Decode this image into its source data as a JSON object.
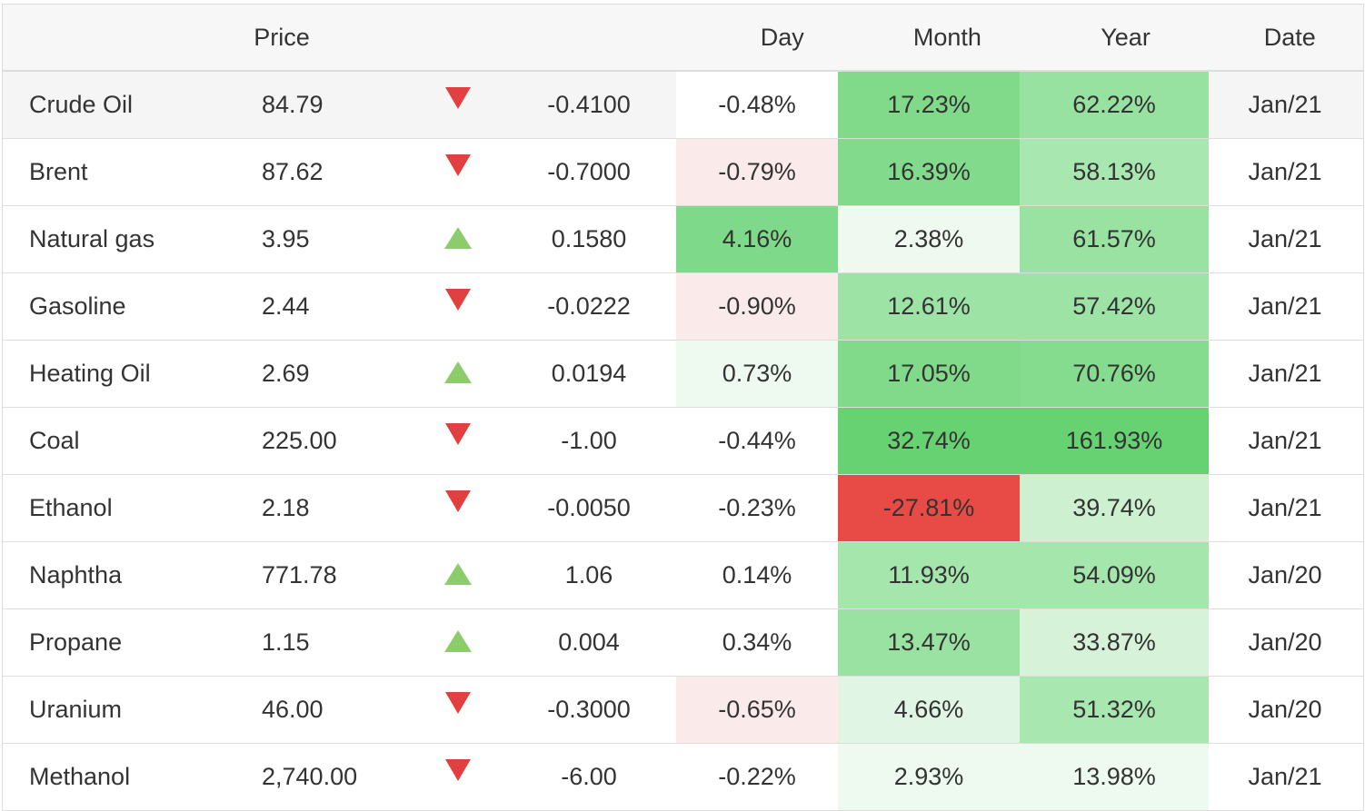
{
  "header": {
    "price": "Price",
    "day": "Day",
    "month": "Month",
    "year": "Year",
    "date": "Date"
  },
  "colors": {
    "down_arrow": "#e04040",
    "up_arrow": "#8ccc6a",
    "negative_strong": "#e84a45",
    "negative_light": "#fbeaea"
  },
  "rows": [
    {
      "name": "Crude Oil",
      "price": "84.79",
      "direction": "down",
      "change": "-0.4100",
      "day": "-0.48%",
      "month": "17.23%",
      "year": "62.22%",
      "date": "Jan/21",
      "day_color": "#ffffff",
      "month_color": "#80da8a",
      "year_color": "#97e2a0"
    },
    {
      "name": "Brent",
      "price": "87.62",
      "direction": "down",
      "change": "-0.7000",
      "day": "-0.79%",
      "month": "16.39%",
      "year": "58.13%",
      "date": "Jan/21",
      "day_color": "#fbeaea",
      "month_color": "#82db8c",
      "year_color": "#a8e8b0"
    },
    {
      "name": "Natural gas",
      "price": "3.95",
      "direction": "up",
      "change": "0.1580",
      "day": "4.16%",
      "month": "2.38%",
      "year": "61.57%",
      "date": "Jan/21",
      "day_color": "#7fd98a",
      "month_color": "#eff9f0",
      "year_color": "#99e2a2"
    },
    {
      "name": "Gasoline",
      "price": "2.44",
      "direction": "down",
      "change": "-0.0222",
      "day": "-0.90%",
      "month": "12.61%",
      "year": "57.42%",
      "date": "Jan/21",
      "day_color": "#fbeaea",
      "month_color": "#9ce3a5",
      "year_color": "#9ce3a5"
    },
    {
      "name": "Heating Oil",
      "price": "2.69",
      "direction": "up",
      "change": "0.0194",
      "day": "0.73%",
      "month": "17.05%",
      "year": "70.76%",
      "date": "Jan/21",
      "day_color": "#eef9f0",
      "month_color": "#80da8a",
      "year_color": "#85dc8f"
    },
    {
      "name": "Coal",
      "price": "225.00",
      "direction": "down",
      "change": "-1.00",
      "day": "-0.44%",
      "month": "32.74%",
      "year": "161.93%",
      "date": "Jan/21",
      "day_color": "#ffffff",
      "month_color": "#66d271",
      "year_color": "#66d271"
    },
    {
      "name": "Ethanol",
      "price": "2.18",
      "direction": "down",
      "change": "-0.0050",
      "day": "-0.23%",
      "month": "-27.81%",
      "year": "39.74%",
      "date": "Jan/21",
      "day_color": "#ffffff",
      "month_color": "#e84a45",
      "year_color": "#ccf0d0"
    },
    {
      "name": "Naphtha",
      "price": "771.78",
      "direction": "up",
      "change": "1.06",
      "day": "0.14%",
      "month": "11.93%",
      "year": "54.09%",
      "date": "Jan/20",
      "day_color": "#ffffff",
      "month_color": "#a4e6ac",
      "year_color": "#a4e6ac"
    },
    {
      "name": "Propane",
      "price": "1.15",
      "direction": "up",
      "change": "0.004",
      "day": "0.34%",
      "month": "13.47%",
      "year": "33.87%",
      "date": "Jan/20",
      "day_color": "#ffffff",
      "month_color": "#99e2a2",
      "year_color": "#d6f2d9"
    },
    {
      "name": "Uranium",
      "price": "46.00",
      "direction": "down",
      "change": "-0.3000",
      "day": "-0.65%",
      "month": "4.66%",
      "year": "51.32%",
      "date": "Jan/20",
      "day_color": "#fbeaea",
      "month_color": "#e0f5e3",
      "year_color": "#a8e8b0"
    },
    {
      "name": "Methanol",
      "price": "2,740.00",
      "direction": "down",
      "change": "-6.00",
      "day": "-0.22%",
      "month": "2.93%",
      "year": "13.98%",
      "date": "Jan/21",
      "day_color": "#ffffff",
      "month_color": "#eef9f0",
      "year_color": "#eef9f0"
    }
  ]
}
